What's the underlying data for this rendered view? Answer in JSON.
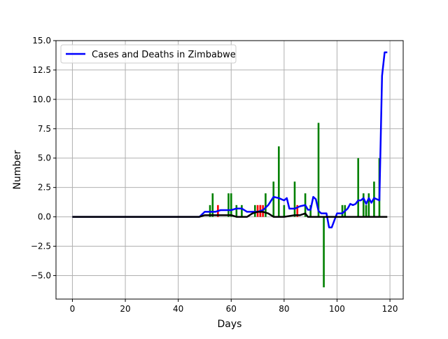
{
  "chart_data": {
    "type": "line",
    "title": "",
    "xlabel": "Days",
    "ylabel": "Number",
    "xlim": [
      -6.2,
      125
    ],
    "ylim": [
      -7.0,
      15.0
    ],
    "x_ticks": [
      0,
      20,
      40,
      60,
      80,
      100,
      120
    ],
    "y_ticks": [
      -5.0,
      -2.5,
      0.0,
      2.5,
      5.0,
      7.5,
      10.0,
      12.5,
      15.0
    ],
    "x_tick_labels": [
      "0",
      "20",
      "40",
      "60",
      "80",
      "100",
      "120"
    ],
    "y_tick_labels": [
      "−5.0",
      "−2.5",
      "0.0",
      "2.5",
      "5.0",
      "7.5",
      "10.0",
      "12.5",
      "15.0"
    ],
    "grid": true,
    "legend": {
      "placement": "top-left",
      "entries": [
        "Cases and Deaths in Zimbabwe"
      ]
    },
    "colors": {
      "cases_line": "#0000ff",
      "deaths_line": "#000000",
      "green_bars": "#008000",
      "red_bars": "#ff0000",
      "grid": "#b0b0b0"
    },
    "series": [
      {
        "name": "Cases and Deaths in Zimbabwe",
        "kind": "line",
        "x": [
          0,
          10,
          20,
          30,
          40,
          48,
          50,
          52,
          54,
          56,
          58,
          60,
          62,
          64,
          66,
          68,
          70,
          72,
          74,
          76,
          78,
          80,
          81,
          82,
          84,
          86,
          88,
          89,
          90,
          91,
          92,
          93,
          94,
          95,
          96,
          97,
          98,
          99,
          100,
          101,
          102,
          103,
          104,
          105,
          106,
          107,
          108,
          109,
          110,
          111,
          112,
          113,
          114,
          115,
          116,
          117,
          118,
          119
        ],
        "y": [
          0,
          0,
          0,
          0,
          0,
          0,
          0.43,
          0.43,
          0.43,
          0.57,
          0.57,
          0.57,
          0.71,
          0.71,
          0.43,
          0.43,
          0.43,
          0.57,
          1.0,
          1.7,
          1.6,
          1.4,
          1.6,
          0.7,
          0.7,
          0.9,
          1.0,
          0.6,
          0.6,
          1.7,
          1.5,
          0.5,
          0.3,
          0.3,
          0.3,
          -0.9,
          -0.9,
          -0.3,
          0.3,
          0.3,
          0.3,
          0.5,
          0.7,
          1.1,
          1.0,
          1.1,
          1.4,
          1.4,
          1.6,
          1.1,
          1.6,
          1.2,
          1.6,
          1.5,
          1.4,
          12.0,
          14.0,
          14.0
        ]
      },
      {
        "name": "",
        "kind": "line",
        "x": [
          0,
          10,
          20,
          30,
          40,
          48,
          50,
          52,
          54,
          56,
          58,
          60,
          62,
          64,
          66,
          68,
          70,
          72,
          74,
          76,
          80,
          84,
          86,
          88,
          89,
          90,
          92,
          100,
          110,
          119
        ],
        "y": [
          0,
          0,
          0,
          0,
          0,
          0,
          0.14,
          0.14,
          0.14,
          0.14,
          0.14,
          0.14,
          0,
          0,
          0,
          0.29,
          0.43,
          0.43,
          0.29,
          0,
          0,
          0.14,
          0.14,
          0.29,
          0,
          0,
          0,
          0,
          0,
          0
        ]
      },
      {
        "name": "",
        "kind": "bar",
        "color": "green",
        "x": [
          52,
          53,
          59,
          60,
          62,
          64,
          69,
          71,
          73,
          76,
          78,
          80,
          84,
          88,
          90,
          93,
          95,
          102,
          103,
          108,
          110,
          111,
          112,
          114,
          116
        ],
        "y": [
          1,
          2,
          2,
          2,
          1,
          1,
          1,
          1,
          2,
          3,
          6,
          1,
          3,
          2,
          1,
          8,
          -6,
          1,
          1,
          5,
          2,
          1,
          2,
          3,
          5
        ]
      },
      {
        "name": "",
        "kind": "bar",
        "color": "red",
        "x": [
          55,
          70,
          71,
          72,
          85
        ],
        "y": [
          1,
          1,
          1,
          1,
          1
        ]
      }
    ]
  }
}
